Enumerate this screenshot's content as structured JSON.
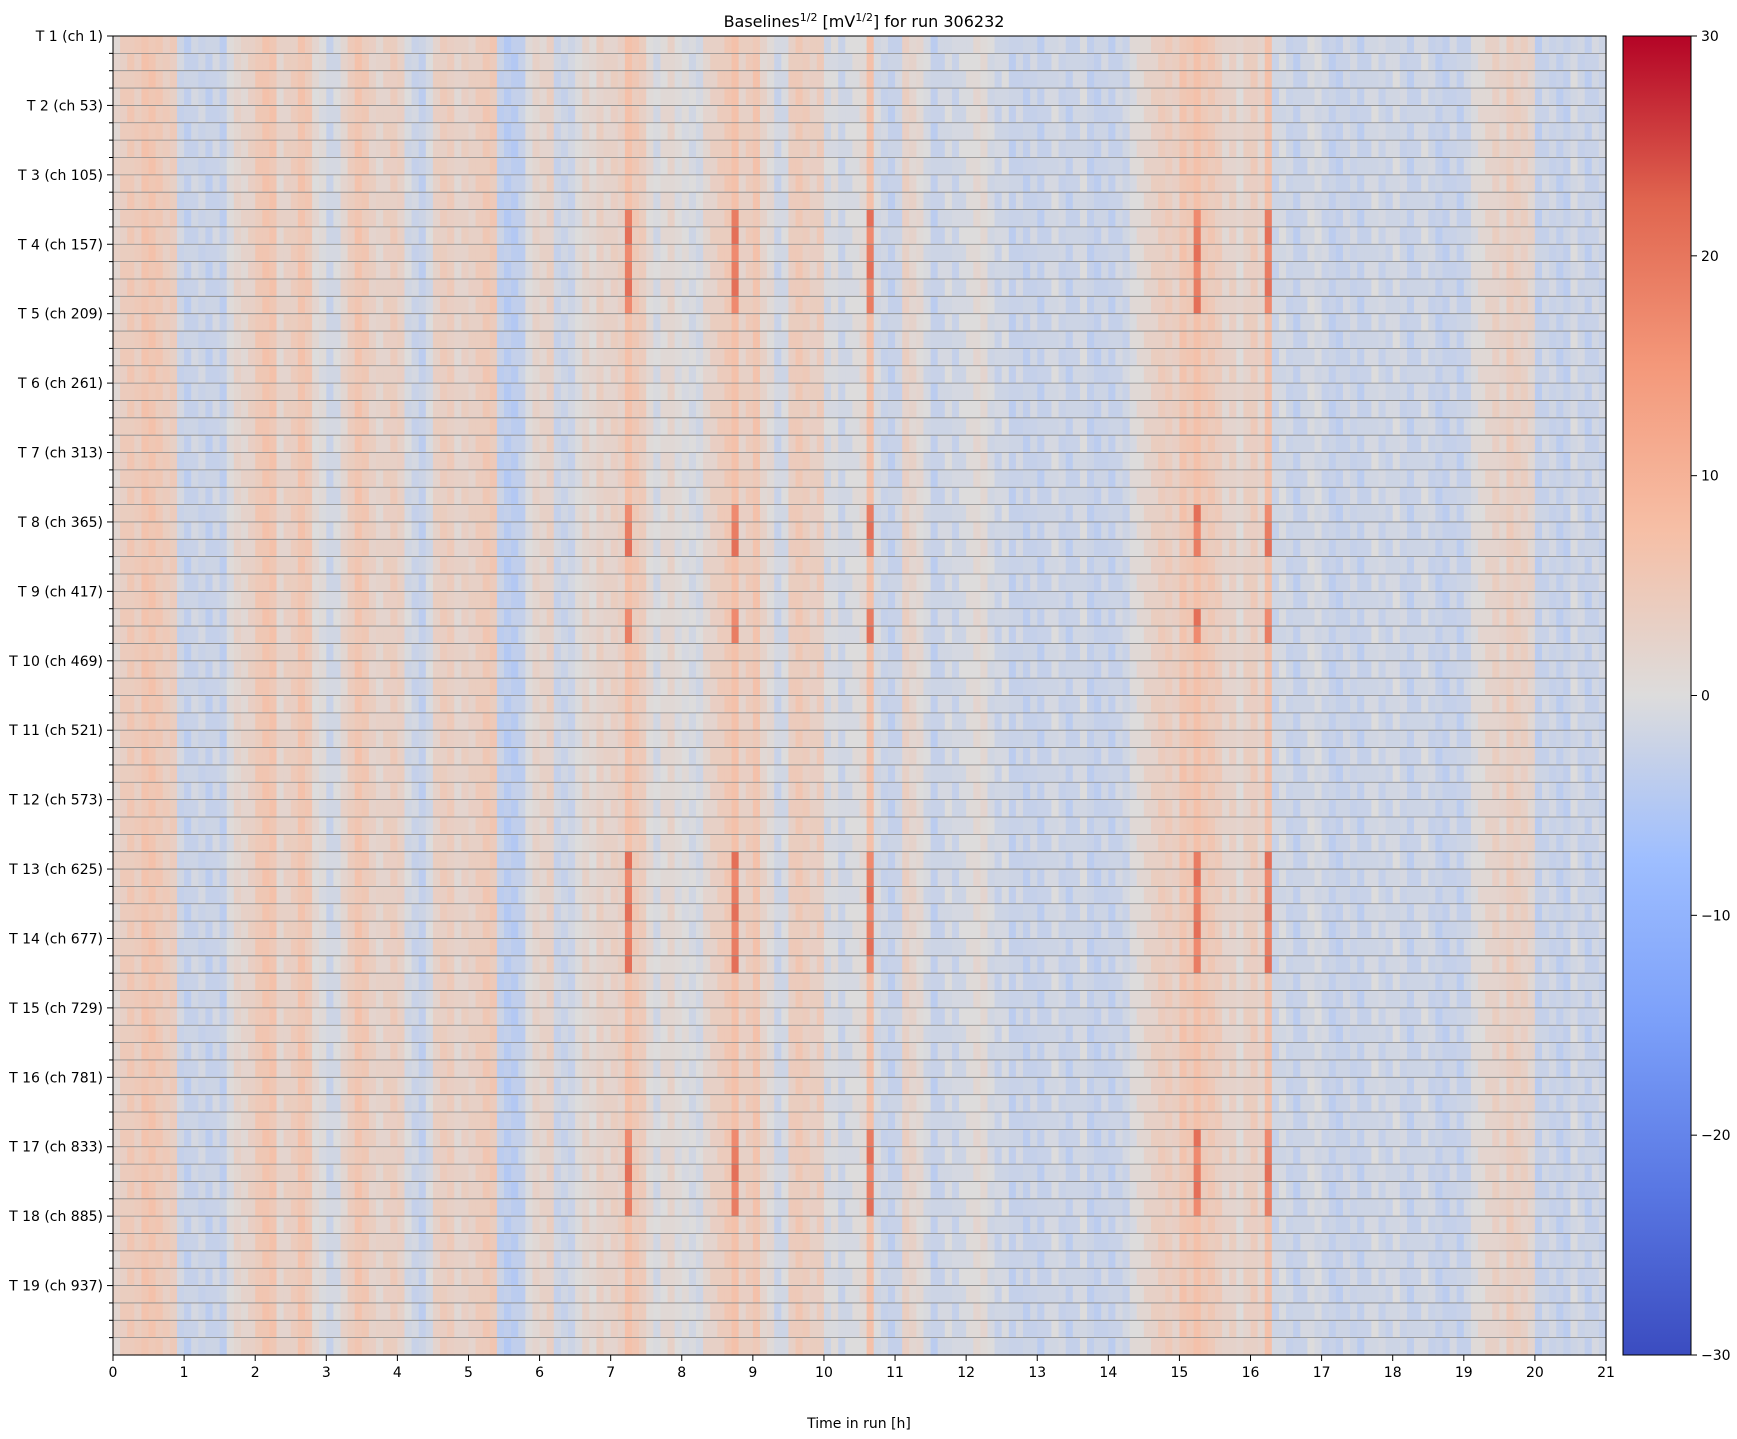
{
  "chart_data": {
    "type": "heatmap",
    "title": {
      "base": "Baselines",
      "exp1": "1/2",
      "mid": " [mV",
      "exp2": "1/2",
      "end": "] for run 306232"
    },
    "xlabel": "Time in run [h]",
    "xlim": [
      0,
      21
    ],
    "x_ticks": [
      "0",
      "1",
      "2",
      "3",
      "4",
      "5",
      "6",
      "7",
      "8",
      "9",
      "10",
      "11",
      "12",
      "13",
      "14",
      "15",
      "16",
      "17",
      "18",
      "19",
      "20",
      "21"
    ],
    "n_rows": 76,
    "rows_per_label": 4,
    "y_tick_labels": [
      "T 1 (ch 1)",
      "T 2 (ch 53)",
      "T 3 (ch 105)",
      "T 4 (ch 157)",
      "T 5 (ch 209)",
      "T 6 (ch 261)",
      "T 7 (ch 313)",
      "T 8 (ch 365)",
      "T 9 (ch 417)",
      "T 10 (ch 469)",
      "T 11 (ch 521)",
      "T 12 (ch 573)",
      "T 13 (ch 625)",
      "T 14 (ch 677)",
      "T 15 (ch 729)",
      "T 16 (ch 781)",
      "T 17 (ch 833)",
      "T 18 (ch 885)",
      "T 19 (ch 937)"
    ],
    "colorbar": {
      "colormap": "coolwarm",
      "min": -30,
      "max": 30,
      "ticks": [
        "30",
        "20",
        "10",
        "0",
        "−10",
        "−20",
        "−30"
      ]
    },
    "time_profile_hours_step": 0.1,
    "time_profile": [
      2,
      4,
      5,
      4,
      6,
      6,
      5,
      4,
      4,
      -2,
      -3,
      -2,
      -2,
      -3,
      -2,
      -3,
      0,
      2,
      2,
      3,
      5,
      6,
      6,
      2,
      3,
      4,
      6,
      5,
      1,
      0,
      -2,
      -1,
      2,
      4,
      6,
      5,
      3,
      2,
      3,
      4,
      3,
      -1,
      -2,
      -3,
      -1,
      3,
      4,
      4,
      2,
      3,
      3,
      4,
      5,
      5,
      -3,
      -4,
      -4,
      -3,
      0,
      2,
      2,
      3,
      -2,
      -2,
      -2,
      0,
      2,
      1,
      3,
      2,
      3,
      3,
      4,
      5,
      4,
      1,
      -1,
      1,
      2,
      0,
      0,
      -1,
      -1,
      2,
      3,
      4,
      5,
      6,
      3,
      4,
      6,
      2,
      1,
      -2,
      -1,
      4,
      5,
      4,
      3,
      4,
      -1,
      0,
      -2,
      -1,
      0,
      1,
      0,
      -1,
      -2,
      -3,
      -2,
      3,
      2,
      1,
      -1,
      -3,
      -2,
      -1,
      -2,
      -1,
      0,
      1,
      1,
      -1,
      -2,
      -1,
      -3,
      -2,
      -3,
      -2,
      -3,
      -2,
      -1,
      -2,
      -3,
      -2,
      -1,
      -3,
      -3,
      -2,
      -3,
      -2,
      -2,
      0,
      1,
      2,
      3,
      4,
      4,
      3,
      6,
      5,
      4,
      5,
      5,
      4,
      2,
      3,
      1,
      3,
      4,
      2,
      -3,
      -2,
      -1,
      -2,
      -3,
      -2,
      -1,
      -1,
      -2,
      -3,
      -3,
      -2,
      -2,
      -3,
      -2,
      -1,
      -2,
      -2,
      -1,
      -2,
      -3,
      -2,
      -1,
      -2,
      -3,
      -3,
      -2,
      -3,
      -2,
      0,
      1,
      2,
      3,
      2,
      4,
      3,
      3,
      2,
      -3,
      -2,
      -2,
      -3,
      -3,
      -1,
      -2,
      -3,
      -2,
      -2,
      -3,
      -2,
      -3,
      -3,
      -2,
      -2
    ],
    "hot_columns_hours": [
      7.2,
      8.7,
      10.6,
      15.2,
      16.2
    ],
    "hot_rows": [
      10,
      11,
      12,
      13,
      14,
      15,
      27,
      28,
      29,
      33,
      34,
      47,
      48,
      49,
      50,
      51,
      52,
      53,
      63,
      64,
      65,
      66,
      67
    ]
  }
}
